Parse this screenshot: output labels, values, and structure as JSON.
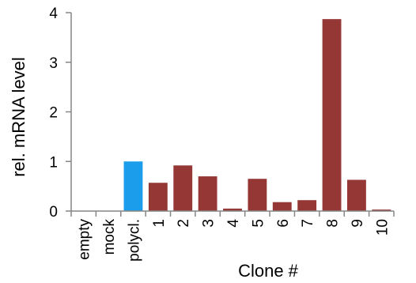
{
  "chart_data": {
    "type": "bar",
    "title": "",
    "xlabel": "Clone #",
    "ylabel": "rel. mRNA level",
    "ylim": [
      0,
      4
    ],
    "yticks": [
      0,
      1,
      2,
      3,
      4
    ],
    "grid": false,
    "categories": [
      "empty",
      "mock",
      "polycl.",
      "1",
      "2",
      "3",
      "4",
      "5",
      "6",
      "7",
      "8",
      "9",
      "10"
    ],
    "values": [
      0,
      0,
      1.0,
      0.57,
      0.92,
      0.7,
      0.05,
      0.65,
      0.18,
      0.22,
      3.87,
      0.63,
      0.03
    ],
    "bar_colors": [
      "#953735",
      "#953735",
      "#1C9DEB",
      "#953735",
      "#953735",
      "#953735",
      "#953735",
      "#953735",
      "#953735",
      "#953735",
      "#953735",
      "#953735",
      "#953735"
    ],
    "axis_color": "#868686"
  }
}
